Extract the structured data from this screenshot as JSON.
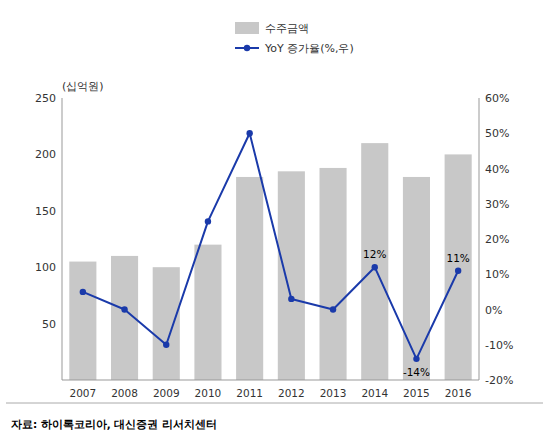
{
  "chart_data": {
    "type": "bar",
    "categories": [
      "2007",
      "2008",
      "2009",
      "2010",
      "2011",
      "2012",
      "2013",
      "2014",
      "2015",
      "2016"
    ],
    "series": [
      {
        "name": "수주금액",
        "type": "bar",
        "color": "#c8c8c8",
        "values": [
          105,
          110,
          100,
          120,
          180,
          185,
          188,
          210,
          180,
          200
        ]
      },
      {
        "name": "YoY 증가율(%,우)",
        "type": "line",
        "axis": "y2",
        "color": "#1a3aaa",
        "marker": "circle",
        "values": [
          5,
          0,
          -10,
          25,
          50,
          3,
          0,
          12,
          -14,
          11
        ]
      }
    ],
    "ylabel": "(십억원)",
    "ylim": [
      0,
      250
    ],
    "yticks": [
      50,
      100,
      150,
      200,
      250
    ],
    "y2lim": [
      -20,
      60
    ],
    "y2ticks": [
      {
        "value": -20,
        "label": "-20%"
      },
      {
        "value": -10,
        "label": "-10%"
      },
      {
        "value": 0,
        "label": "0%"
      },
      {
        "value": 10,
        "label": "10%"
      },
      {
        "value": 20,
        "label": "20%"
      },
      {
        "value": 30,
        "label": "30%"
      },
      {
        "value": 40,
        "label": "40%"
      },
      {
        "value": 50,
        "label": "50%"
      },
      {
        "value": 60,
        "label": "60%"
      }
    ],
    "annotations": [
      {
        "text": "12%",
        "category": "2014",
        "value": 12
      },
      {
        "text": "-14%",
        "category": "2015",
        "value": -14
      },
      {
        "text": "11%",
        "category": "2016",
        "value": 11
      }
    ],
    "source": "자료: 하이록코리아, 대신증권 리서치센터",
    "legend": "top",
    "grid": false
  }
}
